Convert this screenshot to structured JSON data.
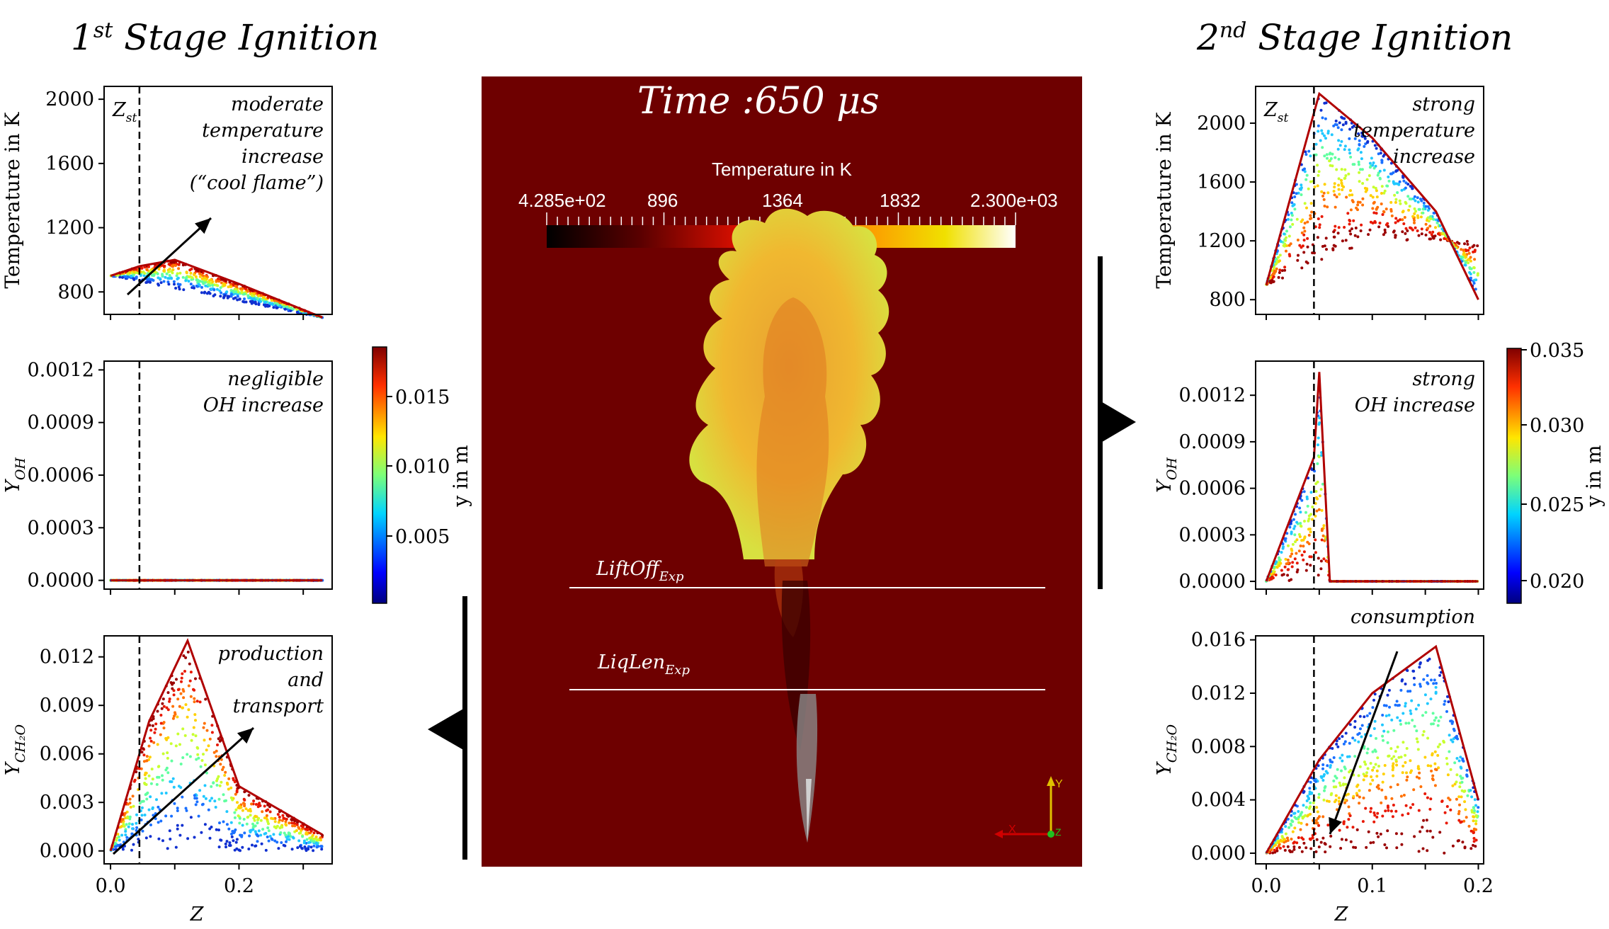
{
  "figure": {
    "title_left": "Stage Ignition",
    "title_left_num": "1",
    "title_left_sup": "st",
    "title_right": "Stage Ignition",
    "title_right_num": "2",
    "title_right_sup": "nd"
  },
  "center": {
    "time_label": "Time :650 μs",
    "colorbar_title": "Temperature in K",
    "colorbar_ticks": [
      "4.285e+02",
      "896",
      "1364",
      "1832",
      "2.300e+03"
    ],
    "liftoff_label": "LiftOff",
    "liftoff_sub": "Exp",
    "liqlen_label": "LiqLen",
    "liqlen_sub": "Exp",
    "axis_y": "Y",
    "axis_x": "X",
    "axis_z": "Z",
    "colors": {
      "background": "#6e0000",
      "flame": "#f2a020"
    }
  },
  "colorbar_left": {
    "label": "y in m",
    "ticks": [
      "0.015",
      "0.010",
      "0.005"
    ]
  },
  "colorbar_right": {
    "label": "y in m",
    "ticks": [
      "0.035",
      "0.030",
      "0.025",
      "0.020"
    ]
  },
  "chart_data": [
    {
      "type": "scatter",
      "panel": "1st stage temperature",
      "ylabel": "Temperature in K",
      "xlabel": "",
      "ylim": [
        660,
        2080
      ],
      "xlim": [
        -0.01,
        0.345
      ],
      "yticks": [
        "2000",
        "1600",
        "1200",
        "800"
      ],
      "zst_label": "Z",
      "zst_sub": "st",
      "zst_x": 0.045,
      "annotation": [
        "moderate",
        "temperature",
        "increase",
        "(“cool flame”)"
      ],
      "series": [
        {
          "x": [
            0.0,
            0.045,
            0.1,
            0.2,
            0.33
          ],
          "y": [
            900,
            960,
            1000,
            850,
            640
          ]
        }
      ]
    },
    {
      "type": "scatter",
      "panel": "1st stage OH",
      "ylabel": "Y",
      "ylabel_sub": "OH",
      "xlabel": "",
      "ylim": [
        -5e-05,
        0.00125
      ],
      "xlim": [
        -0.01,
        0.345
      ],
      "yticks": [
        "0.0012",
        "0.0009",
        "0.0006",
        "0.0003",
        "0.0000"
      ],
      "annotation": [
        "negligible",
        "OH increase"
      ],
      "series": [
        {
          "x": [
            0.0,
            0.33
          ],
          "y": [
            0.0,
            0.0
          ]
        }
      ]
    },
    {
      "type": "scatter",
      "panel": "1st stage CH2O",
      "ylabel": "Y",
      "ylabel_sub": "CH₂O",
      "xlabel": "Z",
      "ylim": [
        -0.0008,
        0.0133
      ],
      "xlim": [
        -0.01,
        0.345
      ],
      "yticks": [
        "0.012",
        "0.009",
        "0.006",
        "0.003",
        "0.000"
      ],
      "xticks": [
        "0.0",
        "0.2"
      ],
      "annotation": [
        "production",
        "and",
        "transport"
      ],
      "series": [
        {
          "x": [
            0.0,
            0.06,
            0.12,
            0.2,
            0.33
          ],
          "y": [
            0.0,
            0.008,
            0.013,
            0.004,
            0.001
          ]
        }
      ]
    },
    {
      "type": "scatter",
      "panel": "2nd stage temperature",
      "ylabel": "Temperature in K",
      "xlabel": "",
      "ylim": [
        700,
        2250
      ],
      "xlim": [
        -0.01,
        0.205
      ],
      "yticks": [
        "2000",
        "1600",
        "1200",
        "800"
      ],
      "zst_label": "Z",
      "zst_sub": "st",
      "zst_x": 0.045,
      "annotation": [
        "strong",
        "temperature",
        "increase"
      ],
      "series": [
        {
          "x": [
            0.0,
            0.05,
            0.1,
            0.16,
            0.2
          ],
          "y": [
            900,
            2200,
            1900,
            1400,
            800
          ]
        }
      ]
    },
    {
      "type": "scatter",
      "panel": "2nd stage OH",
      "ylabel": "Y",
      "ylabel_sub": "OH",
      "xlabel": "",
      "ylim": [
        -5e-05,
        0.00142
      ],
      "xlim": [
        -0.01,
        0.205
      ],
      "yticks": [
        "0.0012",
        "0.0009",
        "0.0006",
        "0.0003",
        "0.0000"
      ],
      "annotation": [
        "strong",
        "OH increase"
      ],
      "series": [
        {
          "x": [
            0.0,
            0.045,
            0.05,
            0.06,
            0.2
          ],
          "y": [
            0.0,
            0.0008,
            0.00135,
            0.0,
            0.0
          ]
        }
      ]
    },
    {
      "type": "scatter",
      "panel": "2nd stage CH2O",
      "ylabel": "Y",
      "ylabel_sub": "CH₂O",
      "xlabel": "Z",
      "ylim": [
        -0.0008,
        0.0163
      ],
      "xlim": [
        -0.01,
        0.205
      ],
      "yticks": [
        "0.016",
        "0.012",
        "0.008",
        "0.004",
        "0.000"
      ],
      "xticks": [
        "0.0",
        "0.1",
        "0.2"
      ],
      "annotation": [
        "consumption"
      ],
      "series": [
        {
          "x": [
            0.0,
            0.05,
            0.1,
            0.16,
            0.2
          ],
          "y": [
            0.0,
            0.007,
            0.012,
            0.0155,
            0.004
          ]
        }
      ]
    }
  ]
}
